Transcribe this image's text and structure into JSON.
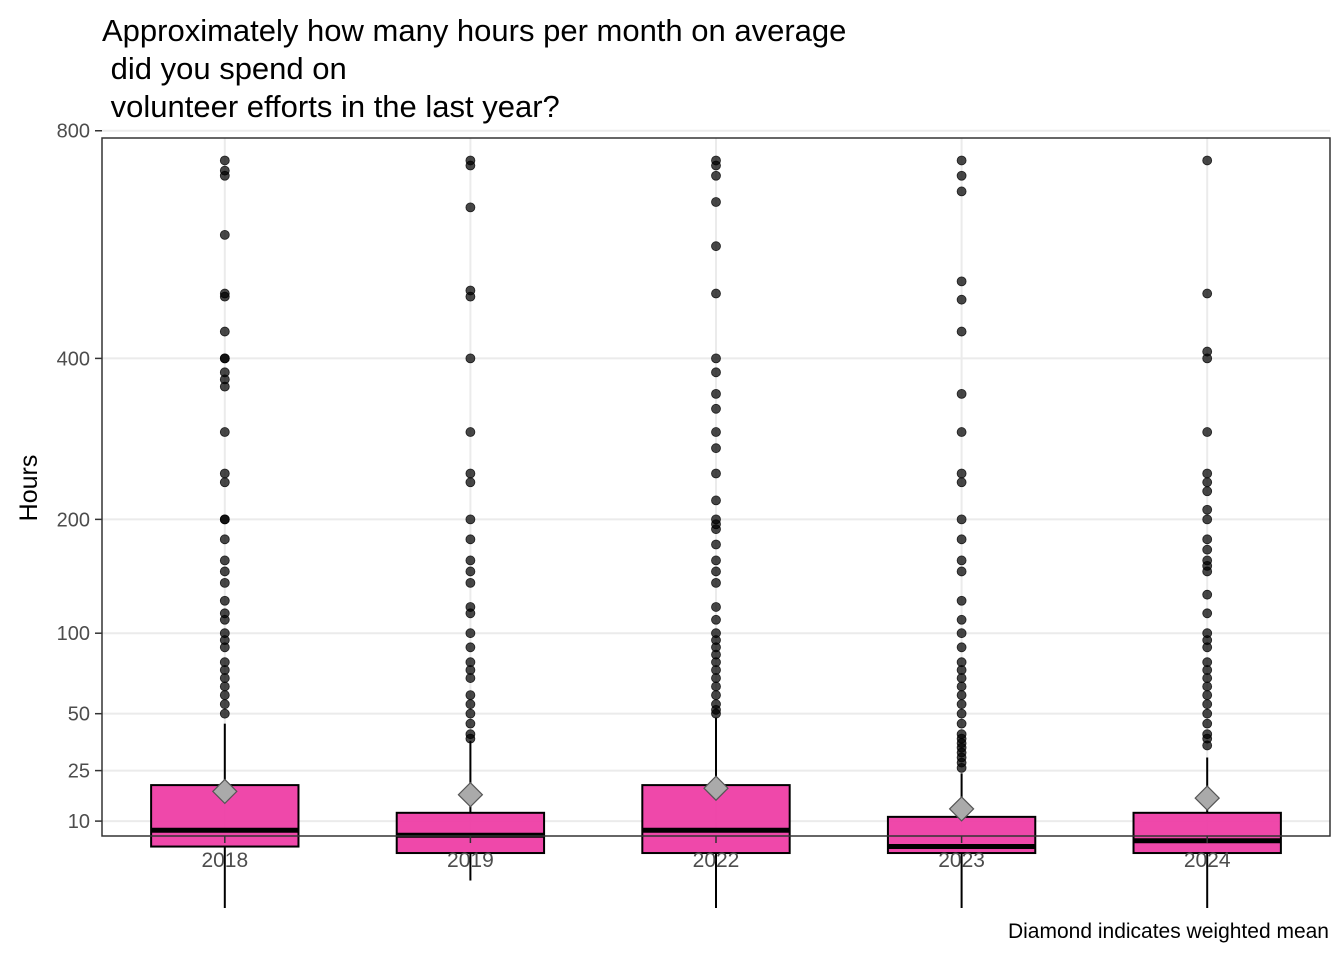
{
  "chart_data": {
    "type": "boxplot",
    "title": "Approximately how many hours per month on average\n did you spend on\n volunteer efforts in the last year?",
    "xlabel": "",
    "ylabel": "Hours",
    "caption": "Diamond indicates weighted mean",
    "y_scale": "sqrt",
    "ylim": [
      0,
      800
    ],
    "y_ticks": [
      10,
      25,
      50,
      100,
      200,
      400,
      800
    ],
    "grid": true,
    "box_fill": "#EE3EA5",
    "mean_marker_color": "#AAAAAA",
    "categories": [
      "2018",
      "2019",
      "2022",
      "2023",
      "2024"
    ],
    "boxes": [
      {
        "category": "2018",
        "lower_whisker": 0,
        "q1": 5,
        "median": 8,
        "q3": 20,
        "upper_whisker": 45,
        "weighted_mean": 18,
        "outliers": [
          740,
          720,
          710,
          600,
          500,
          495,
          440,
          400,
          400,
          380,
          370,
          360,
          300,
          250,
          240,
          200,
          200,
          180,
          160,
          150,
          140,
          125,
          115,
          110,
          100,
          95,
          90,
          80,
          75,
          70,
          65,
          60,
          55,
          50
        ]
      },
      {
        "category": "2019",
        "lower_whisker": 1,
        "q1": 4,
        "median": 7,
        "q3": 12,
        "upper_whisker": 37,
        "weighted_mean": 17,
        "outliers": [
          740,
          730,
          650,
          505,
          495,
          400,
          300,
          250,
          240,
          200,
          180,
          160,
          150,
          140,
          120,
          115,
          100,
          90,
          80,
          75,
          70,
          60,
          55,
          50,
          45,
          40,
          38
        ]
      },
      {
        "category": "2022",
        "lower_whisker": 0,
        "q1": 4,
        "median": 8,
        "q3": 20,
        "upper_whisker": 48,
        "weighted_mean": 19,
        "outliers": [
          740,
          730,
          710,
          660,
          580,
          500,
          400,
          380,
          350,
          330,
          300,
          280,
          250,
          220,
          200,
          195,
          190,
          175,
          160,
          150,
          140,
          120,
          110,
          100,
          95,
          90,
          85,
          80,
          75,
          70,
          65,
          60,
          55,
          52,
          50
        ]
      },
      {
        "category": "2023",
        "lower_whisker": 0,
        "q1": 4,
        "median": 5,
        "q3": 11,
        "upper_whisker": 24,
        "weighted_mean": 13,
        "outliers": [
          740,
          710,
          680,
          520,
          490,
          440,
          350,
          300,
          250,
          240,
          200,
          180,
          160,
          150,
          125,
          110,
          100,
          90,
          80,
          75,
          70,
          65,
          60,
          55,
          50,
          45,
          40,
          38,
          36,
          34,
          32,
          30,
          28,
          26
        ]
      },
      {
        "category": "2024",
        "lower_whisker": 0,
        "q1": 4,
        "median": 6,
        "q3": 12,
        "upper_whisker": 30,
        "weighted_mean": 16,
        "outliers": [
          740,
          500,
          410,
          400,
          300,
          250,
          240,
          230,
          210,
          200,
          180,
          170,
          160,
          155,
          150,
          130,
          115,
          100,
          95,
          90,
          80,
          75,
          70,
          65,
          60,
          55,
          50,
          45,
          40,
          38,
          35
        ]
      }
    ]
  }
}
